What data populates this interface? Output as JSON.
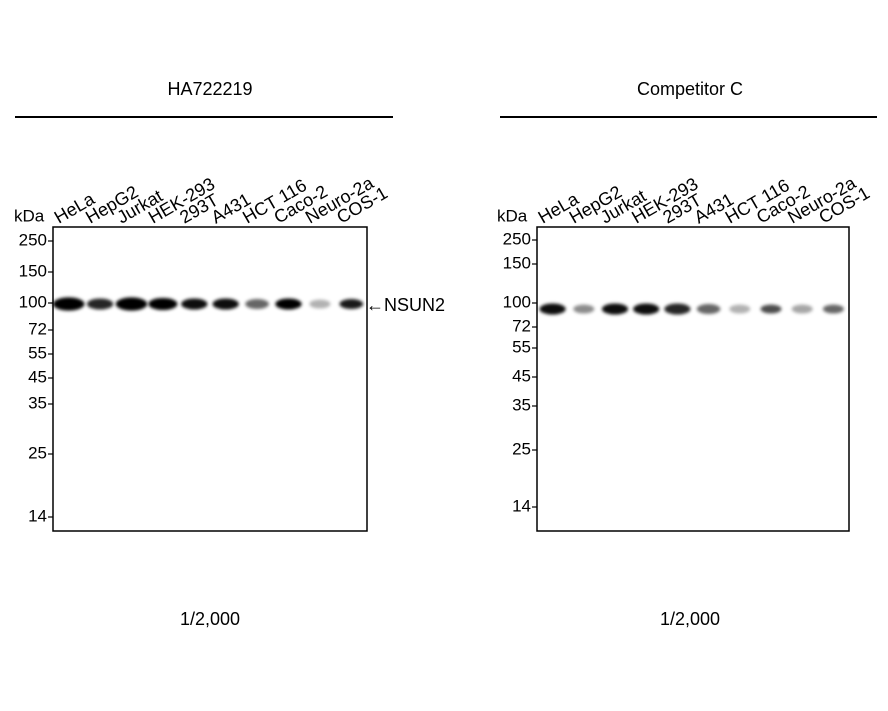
{
  "panels": [
    {
      "title": "HA722219",
      "unit": "kDa",
      "lanes": [
        "HeLa",
        "HepG2",
        "Jurkat",
        "HEK-293",
        "293T",
        "A431",
        "HCT 116",
        "Caco-2",
        "Neuro-2a",
        "COS-1"
      ],
      "markers": [
        250,
        150,
        100,
        72,
        55,
        45,
        35,
        25,
        14
      ],
      "band_label": "←NSUN2",
      "dilution": "1/2,000"
    },
    {
      "title": "Competitor C",
      "unit": "kDa",
      "lanes": [
        "HeLa",
        "HepG2",
        "Jurkat",
        "HEK-293",
        "293T",
        "A431",
        "HCT 116",
        "Caco-2",
        "Neuro-2a",
        "COS-1"
      ],
      "markers": [
        250,
        150,
        100,
        72,
        55,
        45,
        35,
        25,
        14
      ],
      "dilution": "1/2,000"
    }
  ]
}
